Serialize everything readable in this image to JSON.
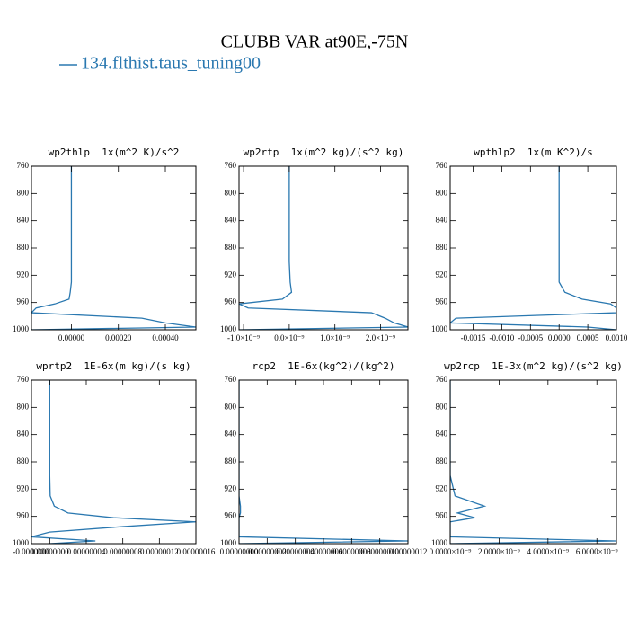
{
  "title": "CLUBB VAR at90E,-75N",
  "legend": {
    "name": "134.flthist.taus_tuning00",
    "color": "#2a78b0"
  },
  "chart_data": [
    {
      "type": "line",
      "title": "wp2thlp  1x(m^2 K)/s^2",
      "color": "#2a78b0",
      "levels": [
        760,
        800,
        850,
        900,
        930,
        945,
        955,
        962,
        968,
        975,
        983,
        990,
        996,
        1000
      ],
      "values": [
        0,
        0,
        0,
        0,
        0,
        -5e-06,
        -1e-05,
        -7e-05,
        -0.00015,
        -0.00017,
        0.0003,
        0.0004,
        0.00053,
        -0.00017
      ],
      "xlim": [
        -0.00017,
        0.00053
      ],
      "xticks": [
        {
          "value": 0,
          "label": "0.00000"
        },
        {
          "value": 0.0002,
          "label": "0.00020"
        },
        {
          "value": 0.0004,
          "label": "0.00040"
        }
      ],
      "ylim": [
        1000,
        760
      ],
      "yticks": [
        760,
        800,
        840,
        880,
        920,
        960,
        1000
      ]
    },
    {
      "type": "line",
      "title": "wp2rtp  1x(m^2 kg)/(s^2 kg)",
      "color": "#2a78b0",
      "levels": [
        760,
        800,
        850,
        900,
        930,
        945,
        955,
        962,
        968,
        975,
        983,
        990,
        996,
        1000
      ],
      "values": [
        0,
        0,
        0,
        0,
        2e-11,
        5e-11,
        -1.5e-10,
        -1.1e-09,
        -9e-10,
        1.8e-09,
        2.1e-09,
        2.3e-09,
        2.6e-09,
        -1.1e-09
      ],
      "xlim": [
        -1.1e-09,
        2.6e-09
      ],
      "xticks": [
        {
          "value": -1e-09,
          "label": "-1.0×10⁻⁹"
        },
        {
          "value": 0,
          "label": "0.0×10⁻⁹"
        },
        {
          "value": 1e-09,
          "label": "1.0×10⁻⁹"
        },
        {
          "value": 2e-09,
          "label": "2.0×10⁻⁹"
        }
      ],
      "ylim": [
        1000,
        760
      ],
      "yticks": [
        760,
        800,
        840,
        880,
        920,
        960,
        1000
      ]
    },
    {
      "type": "line",
      "title": "wpthlp2  1x(m K^2)/s",
      "color": "#2a78b0",
      "levels": [
        760,
        800,
        850,
        900,
        930,
        945,
        955,
        962,
        968,
        975,
        983,
        990,
        996,
        1000
      ],
      "values": [
        0,
        0,
        0,
        0,
        0,
        0.0001,
        0.0004,
        0.0009,
        0.001,
        0.001,
        -0.0018,
        -0.0019,
        0.0005,
        0.001
      ],
      "xlim": [
        -0.0019,
        0.001
      ],
      "xticks": [
        {
          "value": -0.0015,
          "label": "-0.0015"
        },
        {
          "value": -0.001,
          "label": "-0.0010"
        },
        {
          "value": -0.0005,
          "label": "-0.0005"
        },
        {
          "value": 0,
          "label": "0.0000"
        },
        {
          "value": 0.0005,
          "label": "0.0005"
        },
        {
          "value": 0.001,
          "label": "0.0010"
        }
      ],
      "ylim": [
        1000,
        760
      ],
      "yticks": [
        760,
        800,
        840,
        880,
        920,
        960,
        1000
      ]
    },
    {
      "type": "line",
      "title": "wprtp2  1E-6x(m kg)/(s kg)",
      "color": "#2a78b0",
      "levels": [
        760,
        800,
        850,
        900,
        930,
        945,
        955,
        962,
        968,
        975,
        983,
        990,
        996,
        1000
      ],
      "values": [
        0,
        0,
        0,
        0,
        5e-10,
        5e-09,
        2e-08,
        7e-08,
        1.6e-07,
        8e-08,
        0,
        -2e-08,
        5e-08,
        0
      ],
      "xlim": [
        -2e-08,
        1.6e-07
      ],
      "xticks": [
        {
          "value": -2e-08,
          "label": "-0.0000000"
        },
        {
          "value": 0,
          "label": "0.00000000"
        },
        {
          "value": 4e-08,
          "label": "0.00000004"
        },
        {
          "value": 8e-08,
          "label": "0.00000008"
        },
        {
          "value": 1.2e-07,
          "label": "0.00000012"
        },
        {
          "value": 1.6e-07,
          "label": "0.00000016"
        }
      ],
      "ylim": [
        1000,
        760
      ],
      "yticks": [
        760,
        800,
        840,
        880,
        920,
        960,
        1000
      ]
    },
    {
      "type": "line",
      "title": "rcp2  1E-6x(kg^2)/(kg^2)",
      "color": "#2a78b0",
      "levels": [
        760,
        800,
        850,
        900,
        930,
        945,
        955,
        962,
        968,
        975,
        983,
        990,
        996,
        1000
      ],
      "values": [
        0,
        0,
        0,
        0,
        0,
        1e-09,
        1e-09,
        0,
        0,
        0,
        0,
        0,
        1.2e-07,
        0
      ],
      "xlim": [
        0,
        1.2e-07
      ],
      "xticks": [
        {
          "value": 0,
          "label": "0.00000000"
        },
        {
          "value": 2e-08,
          "label": "0.00000002"
        },
        {
          "value": 4e-08,
          "label": "0.00000004"
        },
        {
          "value": 6e-08,
          "label": "0.00000006"
        },
        {
          "value": 8e-08,
          "label": "0.00000008"
        },
        {
          "value": 1e-07,
          "label": "0.00000010"
        },
        {
          "value": 1.2e-07,
          "label": "0.00000012"
        }
      ],
      "ylim": [
        1000,
        760
      ],
      "yticks": [
        760,
        800,
        840,
        880,
        920,
        960,
        1000
      ]
    },
    {
      "type": "line",
      "title": "wp2rcp  1E-3x(m^2 kg)/(s^2 kg)",
      "color": "#2a78b0",
      "levels": [
        760,
        800,
        850,
        900,
        930,
        945,
        955,
        962,
        968,
        975,
        983,
        990,
        996,
        1000
      ],
      "values": [
        0,
        0,
        0,
        0,
        2e-10,
        1.4e-09,
        3e-10,
        1e-09,
        0,
        0,
        0,
        0,
        6.8e-09,
        0
      ],
      "xlim": [
        0,
        6.8e-09
      ],
      "xticks": [
        {
          "value": 0,
          "label": "0.0000×10⁻⁹"
        },
        {
          "value": 2e-09,
          "label": "2.0000×10⁻⁹"
        },
        {
          "value": 4e-09,
          "label": "4.0000×10⁻⁹"
        },
        {
          "value": 6e-09,
          "label": "6.0000×10⁻⁹"
        }
      ],
      "ylim": [
        1000,
        760
      ],
      "yticks": [
        760,
        800,
        840,
        880,
        920,
        960,
        1000
      ]
    }
  ]
}
